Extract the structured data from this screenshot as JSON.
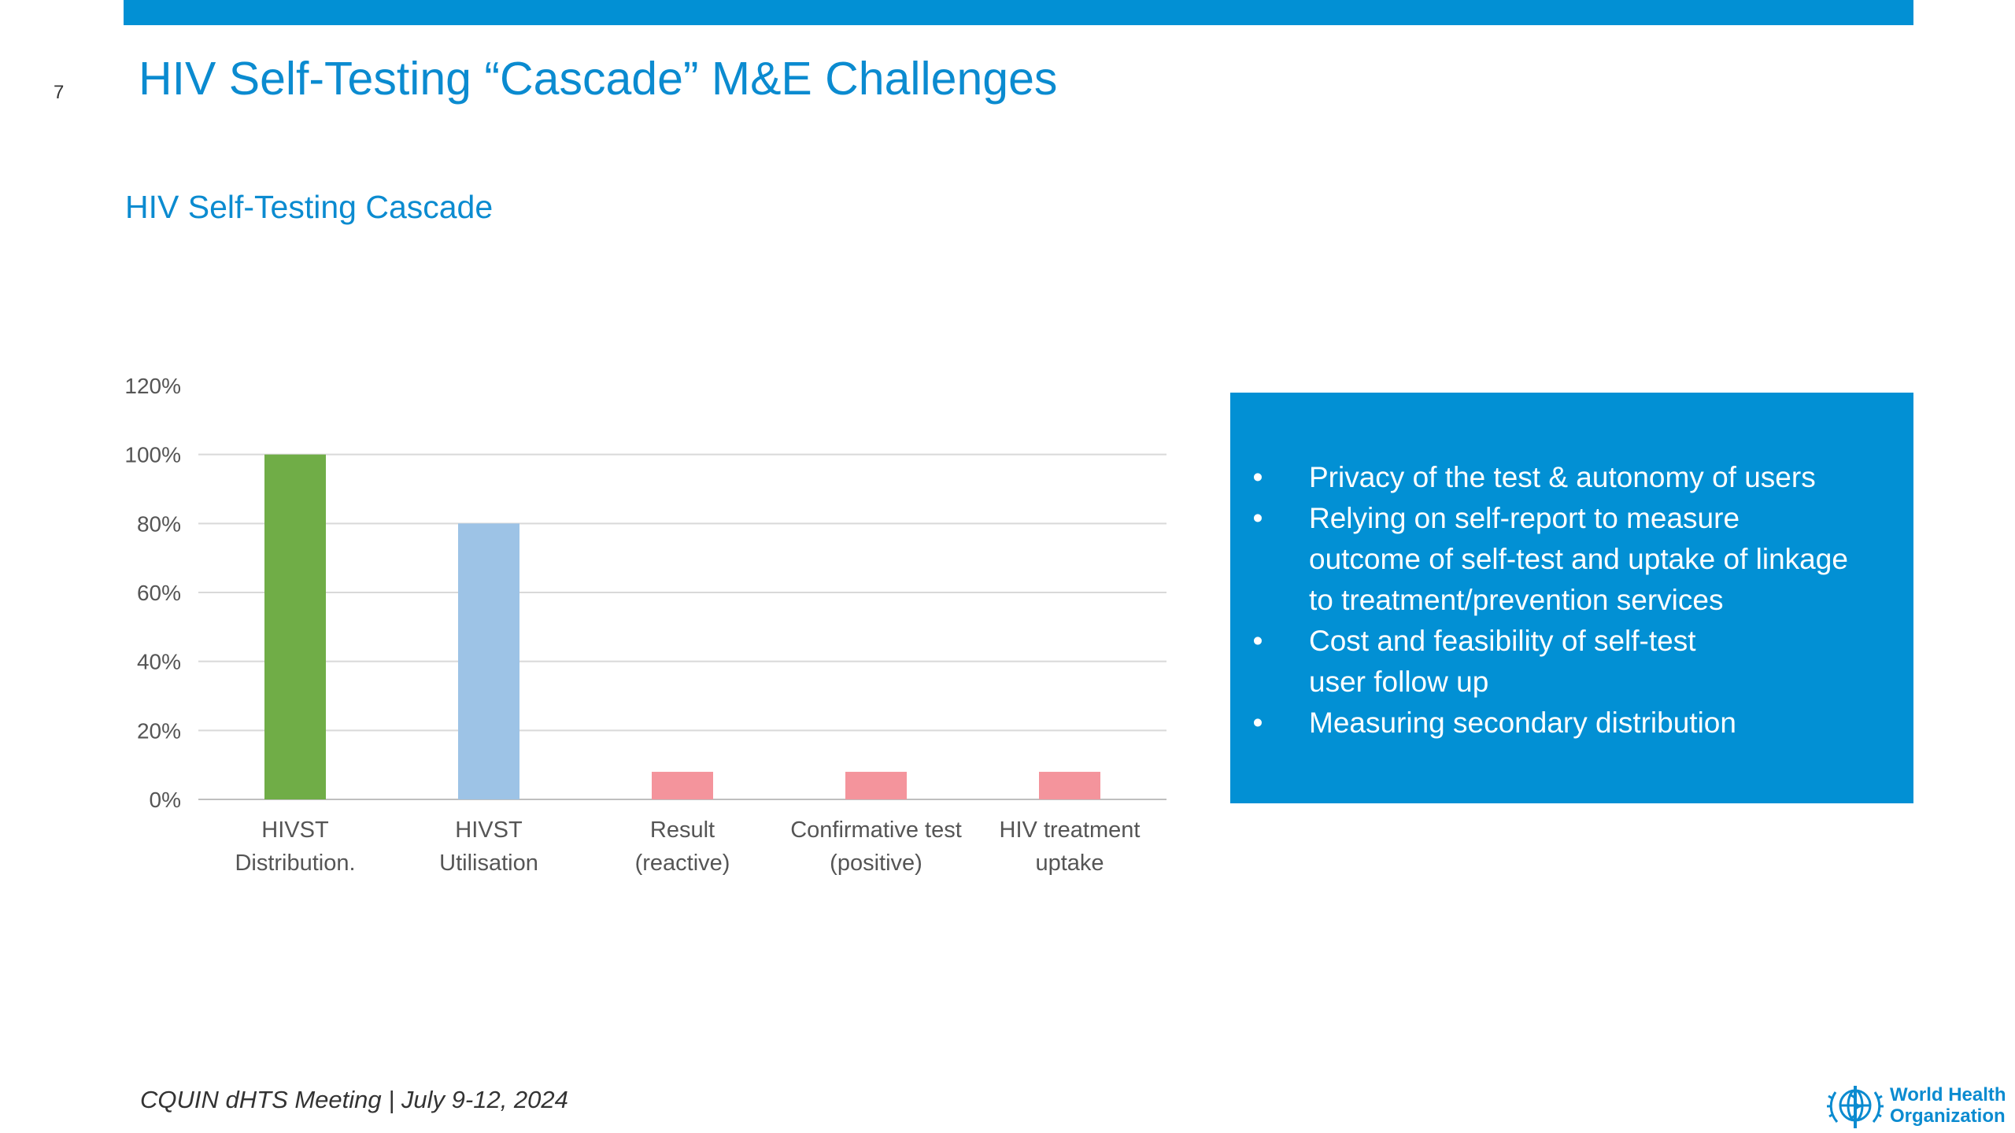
{
  "slide": {
    "number": "7",
    "title": "HIV Self-Testing “Cascade” M&E Challenges",
    "chart_title": "HIV Self-Testing Cascade",
    "footer": "CQUIN dHTS Meeting | July 9-12, 2024"
  },
  "info_box": {
    "background": "#0290d4",
    "bullets": [
      [
        "Privacy of the test & autonomy of users"
      ],
      [
        "Relying on self-report to measure",
        "outcome of self-test and uptake of linkage",
        "to treatment/prevention services"
      ],
      [
        "Cost and feasibility of self-test",
        "user follow up"
      ],
      [
        "Measuring secondary distribution"
      ]
    ]
  },
  "logo": {
    "line1": "World Health",
    "line2": "Organization",
    "icon": "who-emblem-icon"
  },
  "colors": {
    "accent": "#0290d4",
    "title": "#0b8bd0"
  },
  "chart_data": {
    "type": "bar",
    "title": "HIV Self-Testing Cascade",
    "xlabel": "",
    "ylabel": "",
    "ylim": [
      0,
      120
    ],
    "yticks": [
      "0%",
      "20%",
      "40%",
      "60%",
      "80%",
      "100%",
      "120%"
    ],
    "grid": true,
    "categories": [
      [
        "HIVST",
        "Distribution."
      ],
      [
        "HIVST",
        "Utilisation"
      ],
      [
        "Result",
        "(reactive)"
      ],
      [
        "Confirmative test",
        "(positive)"
      ],
      [
        "HIV treatment",
        "uptake"
      ]
    ],
    "values": [
      100,
      80,
      8,
      8,
      8
    ],
    "bar_colors": [
      "#70ad47",
      "#9dc3e6",
      "#f4949c",
      "#f4949c",
      "#f4949c"
    ]
  }
}
